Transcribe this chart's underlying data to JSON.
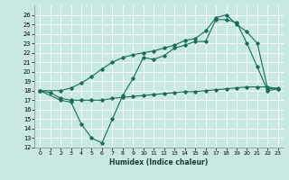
{
  "xlabel": "Humidex (Indice chaleur)",
  "xlim": [
    -0.5,
    23.5
  ],
  "ylim": [
    12,
    27
  ],
  "yticks": [
    12,
    13,
    14,
    15,
    16,
    17,
    18,
    19,
    20,
    21,
    22,
    23,
    24,
    25,
    26
  ],
  "xticks": [
    0,
    1,
    2,
    3,
    4,
    5,
    6,
    7,
    8,
    9,
    10,
    11,
    12,
    13,
    14,
    15,
    16,
    17,
    18,
    19,
    20,
    21,
    22,
    23
  ],
  "bg_color": "#c8e8e2",
  "line_color": "#1a6b5a",
  "line1_x": [
    0,
    1,
    2,
    3,
    4,
    5,
    6,
    7,
    8,
    9,
    10,
    11,
    12,
    13,
    14,
    15,
    16,
    17,
    18,
    19,
    20,
    21,
    22,
    23
  ],
  "line1_y": [
    18.0,
    17.8,
    17.2,
    17.0,
    17.0,
    17.0,
    17.0,
    17.2,
    17.3,
    17.4,
    17.5,
    17.6,
    17.7,
    17.8,
    17.9,
    17.9,
    18.0,
    18.1,
    18.2,
    18.3,
    18.4,
    18.4,
    18.4,
    18.2
  ],
  "line2_x": [
    0,
    2,
    3,
    4,
    5,
    6,
    7,
    8,
    9,
    10,
    11,
    12,
    13,
    14,
    15,
    16,
    17,
    18,
    19,
    20,
    21,
    22,
    23
  ],
  "line2_y": [
    18.0,
    17.0,
    16.8,
    14.5,
    13.0,
    12.5,
    15.0,
    17.5,
    19.3,
    21.5,
    21.3,
    21.7,
    22.5,
    22.8,
    23.2,
    23.2,
    25.5,
    25.5,
    25.2,
    23.0,
    20.5,
    18.0,
    18.2
  ],
  "line3_x": [
    0,
    2,
    3,
    4,
    5,
    6,
    7,
    8,
    9,
    10,
    11,
    12,
    13,
    14,
    15,
    16,
    17,
    18,
    19,
    20,
    21,
    22,
    23
  ],
  "line3_y": [
    18.0,
    18.0,
    18.3,
    18.8,
    19.5,
    20.3,
    21.0,
    21.5,
    21.8,
    22.0,
    22.2,
    22.5,
    22.8,
    23.3,
    23.5,
    24.3,
    25.7,
    26.0,
    25.0,
    24.2,
    23.0,
    18.2,
    18.3
  ]
}
